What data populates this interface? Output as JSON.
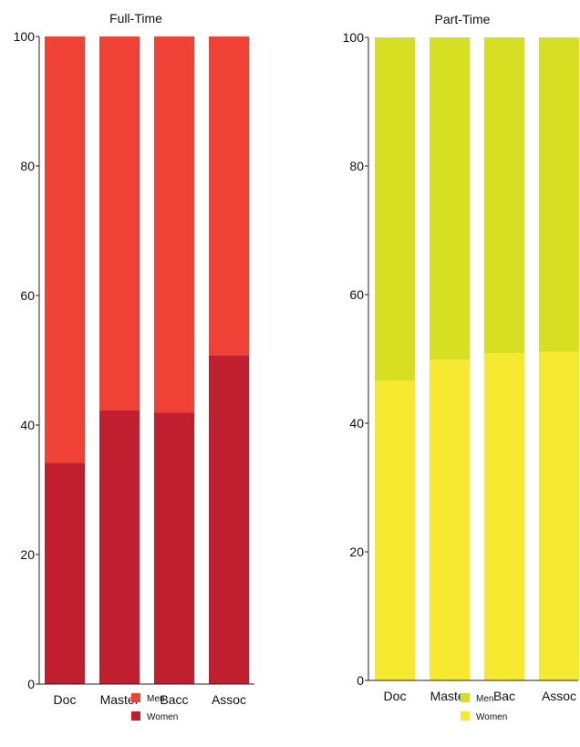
{
  "chart_data": [
    {
      "type": "bar",
      "stacked": true,
      "title": "Full-Time",
      "categories": [
        "Doc",
        "Master",
        "Bacc",
        "Assoc"
      ],
      "ylim": [
        0,
        100
      ],
      "yticks": [
        0,
        20,
        40,
        60,
        80,
        100
      ],
      "grid": false,
      "legend_position": "bottom",
      "series": [
        {
          "name": "Women",
          "values": [
            34.2,
            42.3,
            41.9,
            50.8
          ],
          "color": "#c01f2f"
        },
        {
          "name": "Men",
          "values": [
            65.8,
            57.7,
            58.1,
            49.2
          ],
          "color": "#ef4136"
        }
      ],
      "legend": [
        {
          "label": "Men",
          "color": "#ef4136"
        },
        {
          "label": "Women",
          "color": "#c01f2f"
        }
      ]
    },
    {
      "type": "bar",
      "stacked": true,
      "title": "Part-Time",
      "categories": [
        "Doc",
        "Master",
        "Bac",
        "Assoc"
      ],
      "ylim": [
        0,
        100
      ],
      "yticks": [
        0,
        20,
        40,
        60,
        80,
        100
      ],
      "grid": false,
      "legend_position": "bottom",
      "series": [
        {
          "name": "Women",
          "values": [
            46.6,
            49.9,
            50.9,
            51.1
          ],
          "color": "#f7e930"
        },
        {
          "name": "Men",
          "values": [
            53.4,
            50.1,
            49.1,
            48.9
          ],
          "color": "#d7df23"
        }
      ],
      "legend": [
        {
          "label": "Men",
          "color": "#d7df23"
        },
        {
          "label": "Women",
          "color": "#f7e930"
        }
      ]
    }
  ]
}
